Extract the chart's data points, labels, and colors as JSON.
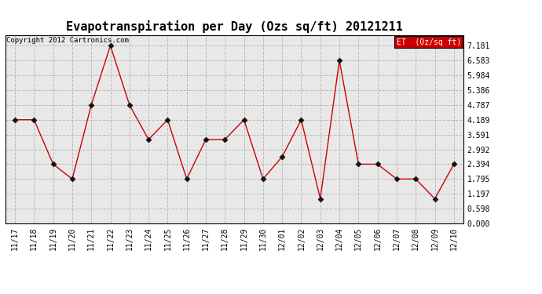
{
  "title": "Evapotranspiration per Day (Ozs sq/ft) 20121211",
  "copyright": "Copyright 2012 Cartronics.com",
  "legend_label": "ET  (0z/sq ft)",
  "x_labels": [
    "11/17",
    "11/18",
    "11/19",
    "11/20",
    "11/21",
    "11/22",
    "11/23",
    "11/24",
    "11/25",
    "11/26",
    "11/27",
    "11/28",
    "11/29",
    "11/30",
    "12/01",
    "12/02",
    "12/03",
    "12/04",
    "12/05",
    "12/06",
    "12/07",
    "12/08",
    "12/09",
    "12/10"
  ],
  "y_values": [
    4.189,
    4.189,
    2.394,
    1.795,
    4.787,
    7.181,
    4.787,
    3.391,
    4.189,
    1.795,
    3.391,
    3.391,
    4.189,
    1.795,
    2.693,
    4.189,
    0.997,
    6.583,
    2.394,
    2.394,
    1.795,
    1.795,
    0.997,
    2.394
  ],
  "y_ticks": [
    0.0,
    0.598,
    1.197,
    1.795,
    2.394,
    2.992,
    3.591,
    4.189,
    4.787,
    5.386,
    5.984,
    6.583,
    7.181
  ],
  "line_color": "#cc0000",
  "marker_color": "#111111",
  "marker_size": 3.5,
  "background_color": "#ffffff",
  "plot_bg_color": "#e8e8e8",
  "grid_color": "#bbbbbb",
  "legend_bg": "#cc0000",
  "legend_text_color": "#ffffff",
  "title_fontsize": 11,
  "copyright_fontsize": 6.5,
  "tick_fontsize": 7,
  "ylim_max": 7.6
}
